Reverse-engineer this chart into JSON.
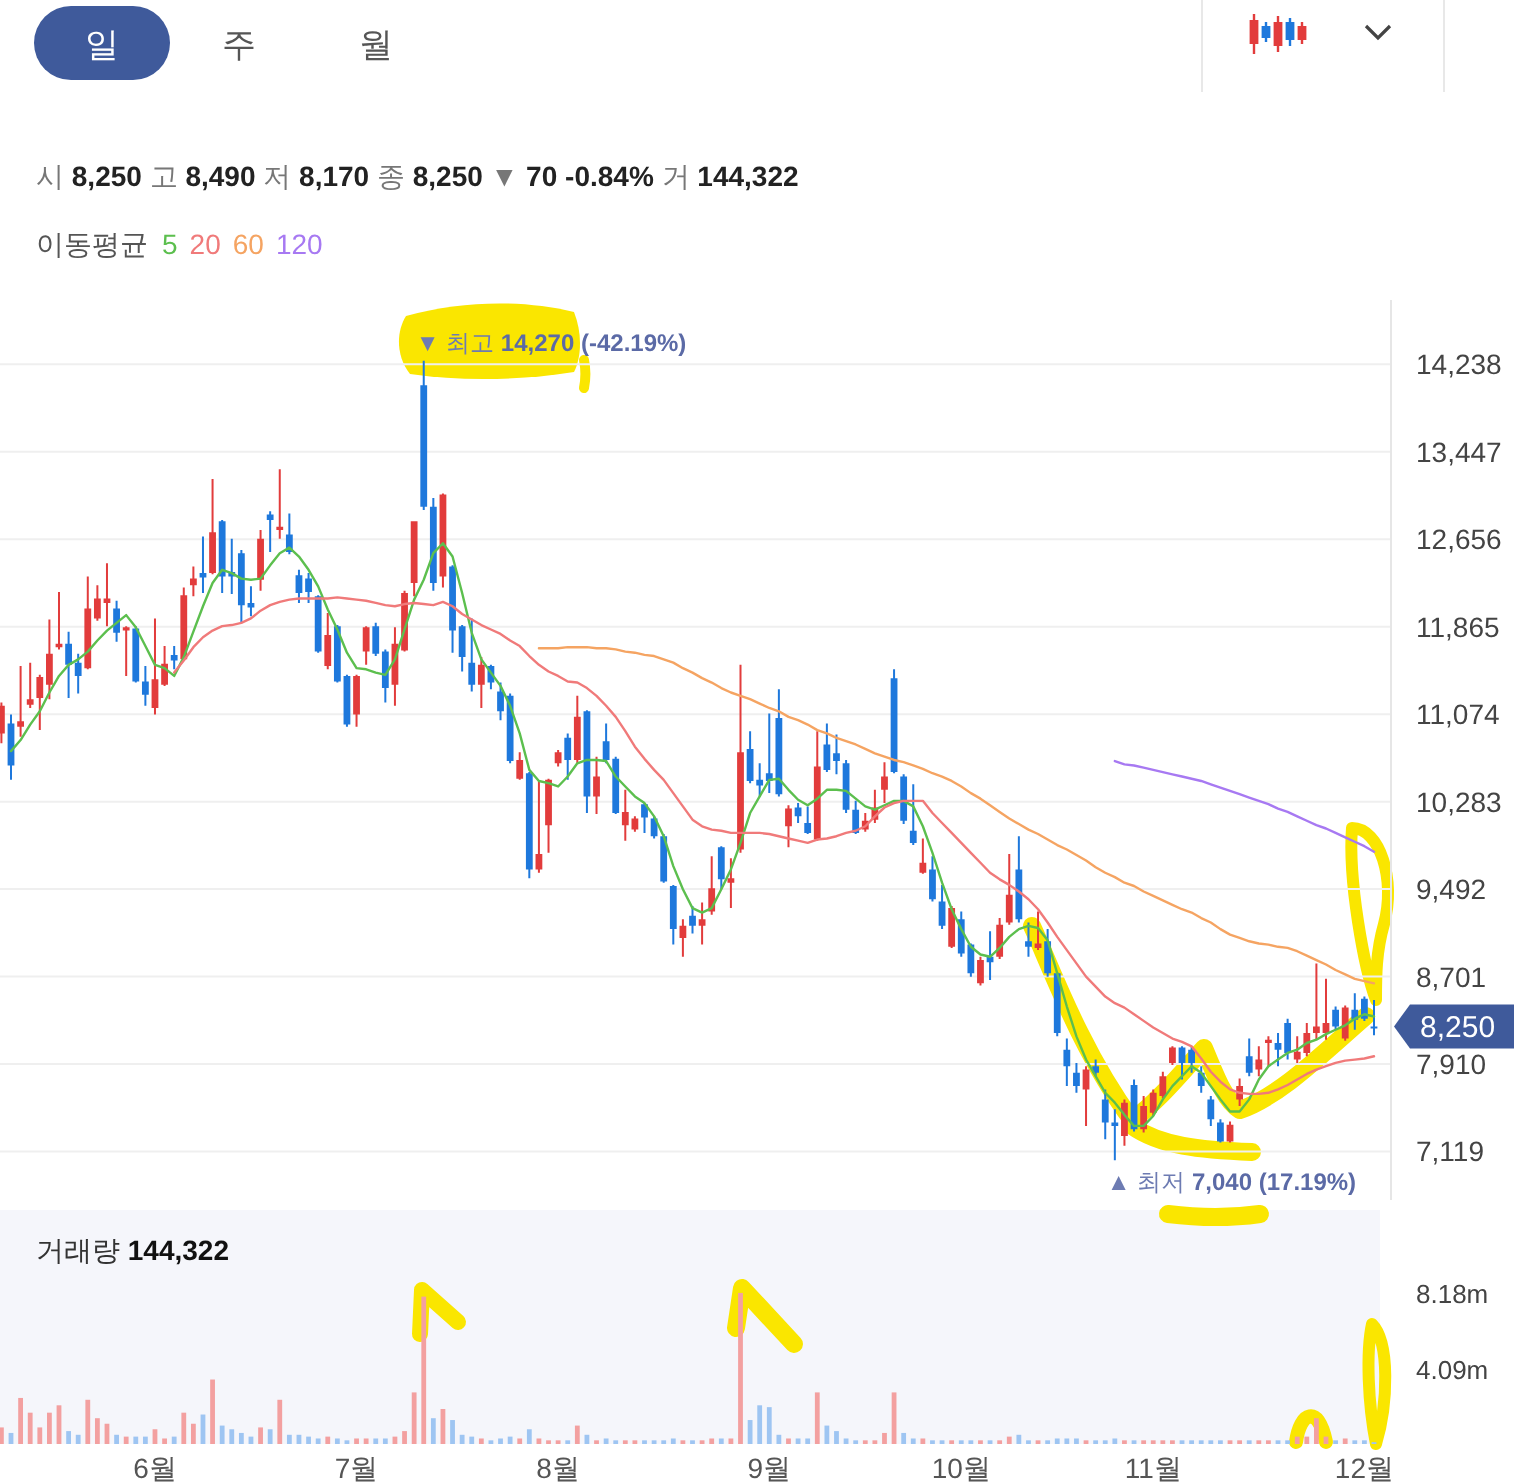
{
  "chart_data": [
    {
      "type": "other",
      "annotations": [
        "일",
        "주",
        "월"
      ]
    },
    {
      "type": "candlestick",
      "title": "시 8,250 고 8,490 저 8,170 종 8,250 ▼ 70 -0.84% 거 144,322",
      "legend": "top left",
      "legend_title": "이동평균",
      "grid": "y",
      "tick_labels": "y",
      "ylim": [
        6680,
        14820
      ],
      "yticks": [
        {
          "value": 7119,
          "label": "7,119"
        },
        {
          "value": 7910,
          "label": "7,910"
        },
        {
          "value": 8701,
          "label": "8,701"
        },
        {
          "value": 9492,
          "label": "9,492"
        },
        {
          "value": 10283,
          "label": "10,283"
        },
        {
          "value": 11074,
          "label": "11,074"
        },
        {
          "value": 11865,
          "label": "11,865"
        },
        {
          "value": 12656,
          "label": "12,656"
        },
        {
          "value": 13447,
          "label": "13,447"
        },
        {
          "value": 14238,
          "label": "14,238"
        }
      ],
      "categories": [
        null,
        null,
        null,
        null,
        null,
        null,
        null,
        null,
        null,
        null,
        null,
        null,
        null,
        null,
        null,
        null,
        null,
        null,
        null,
        null,
        null,
        null,
        null,
        null,
        null,
        null,
        null,
        null,
        null,
        null,
        null,
        null,
        null,
        null,
        null,
        null,
        null,
        null,
        null,
        null,
        null,
        null,
        null,
        null,
        null,
        null,
        null,
        null,
        null,
        null,
        null,
        null,
        null,
        null,
        null,
        null,
        null,
        null,
        null,
        null,
        null,
        null,
        null,
        null,
        null,
        null,
        null,
        null,
        null,
        null,
        null,
        null,
        null,
        null,
        null,
        null,
        null,
        null,
        null,
        null,
        null,
        null,
        null,
        null,
        null,
        null,
        null,
        null,
        null,
        null,
        null,
        null,
        null,
        null,
        null,
        null,
        null,
        null,
        null,
        null,
        null,
        null,
        null,
        null,
        null,
        null,
        null,
        null,
        null,
        null,
        null,
        null,
        null,
        null,
        null,
        null,
        null,
        null,
        null,
        null,
        null,
        null,
        null,
        null,
        null,
        null,
        null,
        null,
        null,
        null,
        null,
        null,
        null,
        null,
        null,
        null,
        null,
        null,
        null,
        null,
        null,
        null,
        null,
        null
      ],
      "ohlc": [
        [
          10900,
          11180,
          10810,
          11150
        ],
        [
          10990,
          11070,
          10480,
          10610
        ],
        [
          10960,
          11510,
          10870,
          11010
        ],
        [
          11160,
          11540,
          11130,
          11210
        ],
        [
          11220,
          11430,
          10930,
          11410
        ],
        [
          11340,
          11930,
          11210,
          11620
        ],
        [
          11680,
          12180,
          11660,
          11710
        ],
        [
          11710,
          11820,
          11220,
          11520
        ],
        [
          11540,
          11620,
          11260,
          11420
        ],
        [
          11490,
          12320,
          11480,
          12030
        ],
        [
          11940,
          12240,
          11920,
          12120
        ],
        [
          12080,
          12440,
          11870,
          12120
        ],
        [
          12030,
          12100,
          11730,
          11810
        ],
        [
          11830,
          11870,
          11420,
          11860
        ],
        [
          11850,
          11870,
          11360,
          11370
        ],
        [
          11370,
          11510,
          11150,
          11250
        ],
        [
          11130,
          11940,
          11070,
          11390
        ],
        [
          11340,
          11690,
          11330,
          11530
        ],
        [
          11610,
          11690,
          11480,
          11560
        ],
        [
          11570,
          12220,
          11560,
          12150
        ],
        [
          12240,
          12410,
          12140,
          12300
        ],
        [
          12350,
          12680,
          12170,
          12310
        ],
        [
          12350,
          13200,
          12340,
          12720
        ],
        [
          12820,
          12830,
          12170,
          12320
        ],
        [
          12360,
          12660,
          12160,
          12320
        ],
        [
          12530,
          12560,
          11900,
          12060
        ],
        [
          12080,
          12230,
          11960,
          12040
        ],
        [
          12290,
          12740,
          12190,
          12660
        ],
        [
          12880,
          12910,
          12540,
          12830
        ],
        [
          12740,
          13290,
          12660,
          12770
        ],
        [
          12700,
          12890,
          12520,
          12540
        ],
        [
          12330,
          12380,
          12080,
          12170
        ],
        [
          12300,
          12350,
          12080,
          12180
        ],
        [
          12140,
          12150,
          11630,
          11640
        ],
        [
          11510,
          11990,
          11480,
          11790
        ],
        [
          11870,
          11880,
          11360,
          11370
        ],
        [
          11420,
          11430,
          10960,
          10980
        ],
        [
          11070,
          11430,
          10960,
          11420
        ],
        [
          11640,
          11870,
          11520,
          11860
        ],
        [
          11870,
          11900,
          11600,
          11620
        ],
        [
          11640,
          11660,
          11180,
          11310
        ],
        [
          11340,
          11860,
          11150,
          11710
        ],
        [
          11650,
          12190,
          11640,
          12170
        ],
        [
          12260,
          12820,
          12140,
          12820
        ],
        [
          14050,
          14270,
          12920,
          12950
        ],
        [
          12950,
          13030,
          12190,
          12260
        ],
        [
          12320,
          13070,
          12220,
          13060
        ],
        [
          12410,
          12420,
          11630,
          11830
        ],
        [
          11870,
          11880,
          11460,
          11590
        ],
        [
          11540,
          11940,
          11280,
          11340
        ],
        [
          11340,
          11590,
          11130,
          11520
        ],
        [
          11510,
          11520,
          11300,
          11360
        ],
        [
          11280,
          11360,
          11020,
          11100
        ],
        [
          11240,
          11260,
          10630,
          10650
        ],
        [
          10490,
          10730,
          10480,
          10660
        ],
        [
          10540,
          10550,
          9590,
          9670
        ],
        [
          9670,
          10470,
          9640,
          9810
        ],
        [
          10070,
          10490,
          9820,
          10480
        ],
        [
          10630,
          10750,
          10600,
          10730
        ],
        [
          10860,
          10900,
          10480,
          10660
        ],
        [
          10660,
          11240,
          10630,
          11050
        ],
        [
          11100,
          11110,
          10180,
          10330
        ],
        [
          10330,
          10690,
          10170,
          10510
        ],
        [
          10830,
          10990,
          10630,
          10660
        ],
        [
          10670,
          10690,
          10170,
          10180
        ],
        [
          10070,
          10390,
          9930,
          10190
        ],
        [
          10030,
          10150,
          10010,
          10130
        ],
        [
          10260,
          10270,
          10000,
          10140
        ],
        [
          10130,
          10150,
          9950,
          9970
        ],
        [
          9970,
          9990,
          9550,
          9560
        ],
        [
          9520,
          9530,
          8990,
          9130
        ],
        [
          9050,
          9220,
          8880,
          9160
        ],
        [
          9250,
          9340,
          9090,
          9160
        ],
        [
          9160,
          9370,
          8990,
          9220
        ],
        [
          9290,
          9790,
          9260,
          9500
        ],
        [
          9870,
          9880,
          9490,
          9580
        ],
        [
          9550,
          9770,
          9320,
          9590
        ],
        [
          9850,
          11520,
          9820,
          10730
        ],
        [
          10760,
          10920,
          10450,
          10470
        ],
        [
          10480,
          10630,
          10330,
          10430
        ],
        [
          10540,
          11080,
          10360,
          10470
        ],
        [
          11040,
          11300,
          10330,
          10350
        ],
        [
          10060,
          10250,
          9870,
          10220
        ],
        [
          10230,
          10270,
          10090,
          10150
        ],
        [
          10090,
          10240,
          9990,
          10000
        ],
        [
          9940,
          10920,
          9930,
          10600
        ],
        [
          10800,
          10990,
          10550,
          10570
        ],
        [
          10720,
          10890,
          10530,
          10650
        ],
        [
          10630,
          10660,
          10180,
          10210
        ],
        [
          10210,
          10290,
          9990,
          10000
        ],
        [
          10030,
          10180,
          10010,
          10110
        ],
        [
          10120,
          10390,
          10090,
          10230
        ],
        [
          10390,
          10640,
          10270,
          10510
        ],
        [
          11400,
          11480,
          10540,
          10550
        ],
        [
          10510,
          10530,
          10080,
          10110
        ],
        [
          10020,
          10440,
          9890,
          9910
        ],
        [
          9640,
          9950,
          9630,
          9730
        ],
        [
          9670,
          9790,
          9380,
          9400
        ],
        [
          9380,
          9530,
          9130,
          9160
        ],
        [
          8970,
          9340,
          8960,
          9320
        ],
        [
          9220,
          9290,
          8880,
          8910
        ],
        [
          8990,
          9000,
          8700,
          8730
        ],
        [
          8640,
          8880,
          8620,
          8850
        ],
        [
          8880,
          9110,
          8670,
          8830
        ],
        [
          8880,
          9230,
          8860,
          9170
        ],
        [
          9190,
          9810,
          9170,
          9440
        ],
        [
          9670,
          9970,
          9190,
          9220
        ],
        [
          9020,
          9190,
          8880,
          8970
        ],
        [
          8960,
          9290,
          8940,
          9000
        ],
        [
          9020,
          9130,
          8700,
          8730
        ],
        [
          8730,
          8740,
          8160,
          8190
        ],
        [
          8040,
          8140,
          7710,
          7890
        ],
        [
          7830,
          7920,
          7650,
          7710
        ],
        [
          7680,
          7890,
          7350,
          7860
        ],
        [
          7890,
          7950,
          7800,
          7830
        ],
        [
          7590,
          7680,
          7230,
          7380
        ],
        [
          7380,
          7500,
          7040,
          7350
        ],
        [
          7260,
          7590,
          7170,
          7560
        ],
        [
          7720,
          7770,
          7300,
          7320
        ],
        [
          7320,
          7620,
          7290,
          7530
        ],
        [
          7470,
          7680,
          7440,
          7650
        ],
        [
          7620,
          7840,
          7600,
          7800
        ],
        [
          7920,
          8070,
          7900,
          8060
        ],
        [
          8060,
          8070,
          7770,
          7920
        ],
        [
          8040,
          8070,
          7830,
          7920
        ],
        [
          7830,
          7890,
          7650,
          7710
        ],
        [
          7590,
          7620,
          7350,
          7410
        ],
        [
          7380,
          7410,
          7200,
          7210
        ],
        [
          7210,
          7390,
          7200,
          7360
        ],
        [
          7590,
          7780,
          7530,
          7710
        ],
        [
          7980,
          8140,
          7800,
          7830
        ],
        [
          7860,
          8070,
          7800,
          7950
        ],
        [
          8100,
          8160,
          7890,
          8130
        ],
        [
          8100,
          8190,
          7890,
          8040
        ],
        [
          8280,
          8320,
          7950,
          8010
        ],
        [
          7950,
          8160,
          7920,
          8020
        ],
        [
          8010,
          8280,
          7980,
          8190
        ],
        [
          8190,
          8820,
          8130,
          8250
        ],
        [
          8190,
          8680,
          8130,
          8280
        ],
        [
          8400,
          8430,
          8220,
          8250
        ],
        [
          8140,
          8440,
          8120,
          8420
        ],
        [
          8400,
          8550,
          8220,
          8310
        ],
        [
          8500,
          8520,
          8300,
          8320
        ],
        [
          8250,
          8490,
          8170,
          8250
        ]
      ],
      "colors": [
        "#e23c3c",
        "#1e78dc",
        "#e23c3c",
        "#e23c3c",
        "#e23c3c",
        "#e23c3c",
        "#e23c3c",
        "#1e78dc",
        "#1e78dc",
        "#e23c3c",
        "#e23c3c",
        "#e23c3c",
        "#1e78dc",
        "#e23c3c",
        "#1e78dc",
        "#1e78dc",
        "#e23c3c",
        "#e23c3c",
        "#1e78dc",
        "#e23c3c",
        "#e23c3c",
        "#1e78dc",
        "#e23c3c",
        "#1e78dc",
        "#1e78dc",
        "#1e78dc",
        "#1e78dc",
        "#e23c3c",
        "#1e78dc",
        "#e23c3c",
        "#1e78dc",
        "#1e78dc",
        "#1e78dc",
        "#1e78dc",
        "#e23c3c",
        "#1e78dc",
        "#1e78dc",
        "#e23c3c",
        "#e23c3c",
        "#1e78dc",
        "#1e78dc",
        "#e23c3c",
        "#e23c3c",
        "#e23c3c",
        "#1e78dc",
        "#1e78dc",
        "#e23c3c",
        "#1e78dc",
        "#1e78dc",
        "#1e78dc",
        "#e23c3c",
        "#1e78dc",
        "#1e78dc",
        "#1e78dc",
        "#e23c3c",
        "#1e78dc",
        "#e23c3c",
        "#e23c3c",
        "#e23c3c",
        "#1e78dc",
        "#e23c3c",
        "#1e78dc",
        "#e23c3c",
        "#1e78dc",
        "#1e78dc",
        "#e23c3c",
        "#e23c3c",
        "#1e78dc",
        "#1e78dc",
        "#1e78dc",
        "#1e78dc",
        "#e23c3c",
        "#1e78dc",
        "#e23c3c",
        "#e23c3c",
        "#1e78dc",
        "#e23c3c",
        "#e23c3c",
        "#1e78dc",
        "#1e78dc",
        "#1e78dc",
        "#1e78dc",
        "#e23c3c",
        "#1e78dc",
        "#1e78dc",
        "#e23c3c",
        "#1e78dc",
        "#1e78dc",
        "#1e78dc",
        "#1e78dc",
        "#e23c3c",
        "#e23c3c",
        "#e23c3c",
        "#1e78dc",
        "#1e78dc",
        "#1e78dc",
        "#e23c3c",
        "#1e78dc",
        "#1e78dc",
        "#e23c3c",
        "#1e78dc",
        "#1e78dc",
        "#e23c3c",
        "#1e78dc",
        "#e23c3c",
        "#e23c3c",
        "#1e78dc",
        "#1e78dc",
        "#e23c3c",
        "#1e78dc",
        "#1e78dc",
        "#1e78dc",
        "#1e78dc",
        "#e23c3c",
        "#1e78dc",
        "#1e78dc",
        "#1e78dc",
        "#e23c3c",
        "#1e78dc",
        "#e23c3c",
        "#e23c3c",
        "#e23c3c",
        "#e23c3c",
        "#1e78dc",
        "#1e78dc",
        "#1e78dc",
        "#1e78dc",
        "#1e78dc",
        "#e23c3c",
        "#e23c3c",
        "#1e78dc",
        "#e23c3c",
        "#e23c3c",
        "#1e78dc",
        "#1e78dc",
        "#e23c3c",
        "#e23c3c",
        "#e23c3c",
        "#e23c3c",
        "#1e78dc",
        "#e23c3c",
        "#1e78dc",
        "#1e78dc",
        "#1e78dc"
      ],
      "series": [
        {
          "name": "5",
          "type": "line",
          "color": "#5cbf4e",
          "values": [
            null,
            10740,
            10840,
            10980,
            11100,
            11270,
            11420,
            11520,
            11570,
            11640,
            11740,
            11830,
            11900,
            11970,
            11860,
            11690,
            11520,
            11490,
            11420,
            11590,
            11820,
            12050,
            12260,
            12380,
            12350,
            12300,
            12290,
            12300,
            12420,
            12530,
            12580,
            12500,
            12380,
            12230,
            12020,
            11840,
            11630,
            11490,
            11480,
            11450,
            11430,
            11570,
            11840,
            12110,
            12290,
            12530,
            12620,
            12500,
            12170,
            11810,
            11570,
            11450,
            11330,
            11150,
            10900,
            10570,
            10470,
            10450,
            10420,
            10510,
            10630,
            10660,
            10660,
            10650,
            10510,
            10420,
            10330,
            10270,
            10150,
            9970,
            9700,
            9490,
            9320,
            9280,
            9320,
            9490,
            9670,
            9910,
            10180,
            10330,
            10480,
            10490,
            10390,
            10300,
            10250,
            10310,
            10390,
            10390,
            10380,
            10310,
            10240,
            10210,
            10250,
            10290,
            10290,
            10240,
            10060,
            9820,
            9550,
            9310,
            9130,
            8970,
            8900,
            8880,
            8960,
            9060,
            9130,
            9160,
            9140,
            9030,
            8730,
            8430,
            8160,
            7950,
            7800,
            7650,
            7560,
            7450,
            7350,
            7350,
            7440,
            7590,
            7710,
            7800,
            7890,
            7830,
            7710,
            7590,
            7480,
            7480,
            7590,
            7770,
            7890,
            7950,
            8010,
            8040,
            8100,
            8130,
            8180,
            8220,
            8260,
            8320,
            8360,
            8340
          ]
        },
        {
          "name": "20",
          "type": "line",
          "color": "#f07a7a",
          "values": [
            null,
            null,
            null,
            null,
            null,
            null,
            null,
            null,
            null,
            null,
            null,
            null,
            null,
            null,
            null,
            null,
            null,
            null,
            11450,
            11560,
            11680,
            11770,
            11830,
            11870,
            11880,
            11900,
            11940,
            12010,
            12060,
            12090,
            12110,
            12120,
            12120,
            12120,
            12120,
            12130,
            12120,
            12110,
            12100,
            12080,
            12060,
            12050,
            12070,
            12080,
            12070,
            12060,
            12090,
            12050,
            11980,
            11930,
            11880,
            11840,
            11800,
            11740,
            11690,
            11600,
            11520,
            11460,
            11420,
            11370,
            11360,
            11310,
            11240,
            11150,
            11050,
            10920,
            10780,
            10670,
            10570,
            10480,
            10360,
            10240,
            10120,
            10060,
            10030,
            10020,
            10000,
            10000,
            10000,
            10000,
            9990,
            9970,
            9950,
            9930,
            9910,
            9940,
            9950,
            9970,
            10000,
            10020,
            10060,
            10150,
            10230,
            10270,
            10290,
            10290,
            10290,
            10180,
            10090,
            10000,
            9910,
            9820,
            9730,
            9640,
            9580,
            9530,
            9470,
            9400,
            9310,
            9190,
            9060,
            8940,
            8820,
            8700,
            8610,
            8520,
            8460,
            8420,
            8360,
            8300,
            8240,
            8190,
            8140,
            8110,
            8070,
            7960,
            7840,
            7750,
            7680,
            7650,
            7640,
            7640,
            7650,
            7680,
            7720,
            7770,
            7820,
            7860,
            7890,
            7920,
            7940,
            7950,
            7960,
            7980
          ]
        },
        {
          "name": "60",
          "type": "line",
          "color": "#f5a462",
          "values": [
            null,
            null,
            null,
            null,
            null,
            null,
            null,
            null,
            null,
            null,
            null,
            null,
            null,
            null,
            null,
            null,
            null,
            null,
            null,
            null,
            null,
            null,
            null,
            null,
            null,
            null,
            null,
            null,
            null,
            null,
            null,
            null,
            null,
            null,
            null,
            null,
            null,
            null,
            null,
            null,
            null,
            null,
            null,
            null,
            null,
            null,
            null,
            null,
            null,
            null,
            null,
            null,
            null,
            null,
            null,
            null,
            11670,
            11670,
            11670,
            11680,
            11680,
            11680,
            11670,
            11670,
            11660,
            11640,
            11630,
            11610,
            11600,
            11570,
            11540,
            11490,
            11450,
            11400,
            11360,
            11310,
            11270,
            11240,
            11210,
            11170,
            11130,
            11100,
            11050,
            11020,
            10980,
            10930,
            10900,
            10860,
            10830,
            10800,
            10760,
            10720,
            10690,
            10660,
            10640,
            10610,
            10580,
            10540,
            10510,
            10470,
            10420,
            10360,
            10310,
            10250,
            10190,
            10130,
            10080,
            10030,
            9990,
            9940,
            9890,
            9850,
            9800,
            9750,
            9690,
            9640,
            9600,
            9550,
            9520,
            9470,
            9430,
            9390,
            9350,
            9310,
            9280,
            9230,
            9190,
            9130,
            9080,
            9050,
            9020,
            9000,
            8990,
            8970,
            8960,
            8930,
            8890,
            8850,
            8810,
            8760,
            8720,
            8680,
            8660,
            8640
          ]
        },
        {
          "name": "120",
          "type": "line",
          "color": "#a779f2",
          "values": [
            null,
            null,
            null,
            null,
            null,
            null,
            null,
            null,
            null,
            null,
            null,
            null,
            null,
            null,
            null,
            null,
            null,
            null,
            null,
            null,
            null,
            null,
            null,
            null,
            null,
            null,
            null,
            null,
            null,
            null,
            null,
            null,
            null,
            null,
            null,
            null,
            null,
            null,
            null,
            null,
            null,
            null,
            null,
            null,
            null,
            null,
            null,
            null,
            null,
            null,
            null,
            null,
            null,
            null,
            null,
            null,
            null,
            null,
            null,
            null,
            null,
            null,
            null,
            null,
            null,
            null,
            null,
            null,
            null,
            null,
            null,
            null,
            null,
            null,
            null,
            null,
            null,
            null,
            null,
            null,
            null,
            null,
            null,
            null,
            null,
            null,
            null,
            null,
            null,
            null,
            null,
            null,
            null,
            null,
            null,
            null,
            null,
            null,
            null,
            null,
            null,
            null,
            null,
            null,
            null,
            null,
            null,
            null,
            null,
            null,
            null,
            null,
            null,
            null,
            null,
            null,
            10650,
            10620,
            10610,
            10590,
            10570,
            10550,
            10530,
            10510,
            10490,
            10470,
            10440,
            10410,
            10380,
            10350,
            10320,
            10290,
            10260,
            10220,
            10190,
            10150,
            10110,
            10070,
            10040,
            10000,
            9960,
            9920,
            9880,
            9830
          ]
        }
      ],
      "annotations": [
        "▼ 최고 14,270 (-42.19%)",
        "▲ 최저 7,040 (17.19%)",
        "8,250"
      ]
    },
    {
      "type": "bar",
      "title": "거래량 144,322",
      "ylim": [
        0,
        12.7
      ],
      "yticks": [
        {
          "value": 4.09,
          "label": "4.09m"
        },
        {
          "value": 8.18,
          "label": "8.18m"
        }
      ],
      "categories": [
        null,
        null,
        null,
        null,
        null,
        null,
        null,
        null,
        null,
        null,
        null,
        null,
        null,
        null,
        null,
        null,
        "6월",
        null,
        null,
        null,
        null,
        null,
        null,
        null,
        null,
        null,
        null,
        null,
        null,
        null,
        null,
        null,
        null,
        null,
        null,
        null,
        null,
        "7월",
        null,
        null,
        null,
        null,
        null,
        null,
        null,
        null,
        null,
        null,
        null,
        null,
        null,
        null,
        null,
        null,
        null,
        null,
        null,
        null,
        "8월",
        null,
        null,
        null,
        null,
        null,
        null,
        null,
        null,
        null,
        null,
        null,
        null,
        null,
        null,
        null,
        null,
        null,
        null,
        null,
        null,
        null,
        "9월",
        null,
        null,
        null,
        null,
        null,
        null,
        null,
        null,
        null,
        null,
        null,
        null,
        null,
        null,
        null,
        null,
        null,
        null,
        null,
        "10월",
        null,
        null,
        null,
        null,
        null,
        null,
        null,
        null,
        null,
        null,
        null,
        null,
        null,
        null,
        null,
        null,
        null,
        null,
        null,
        "11월",
        null,
        null,
        null,
        null,
        null,
        null,
        null,
        null,
        null,
        null,
        null,
        null,
        null,
        null,
        null,
        null,
        null,
        null,
        null,
        null,
        null,
        "12월",
        null
      ],
      "values": [
        0.9,
        0.6,
        2.5,
        1.7,
        0.9,
        1.7,
        2.1,
        0.7,
        0.5,
        2.4,
        1.4,
        1.1,
        0.5,
        0.4,
        0.4,
        0.4,
        0.8,
        0.3,
        0.4,
        1.7,
        1.1,
        1.6,
        3.5,
        1.0,
        0.8,
        0.6,
        0.4,
        0.9,
        0.8,
        2.4,
        0.5,
        0.5,
        0.4,
        0.3,
        0.4,
        0.3,
        0.2,
        0.3,
        0.3,
        0.3,
        0.3,
        0.4,
        0.7,
        2.8,
        8.0,
        1.4,
        1.9,
        1.3,
        0.5,
        0.4,
        0.3,
        0.2,
        0.3,
        0.4,
        0.3,
        0.8,
        0.3,
        0.2,
        0.2,
        0.2,
        1.0,
        0.5,
        0.2,
        0.3,
        0.2,
        0.2,
        0.2,
        0.2,
        0.2,
        0.2,
        0.3,
        0.2,
        0.2,
        0.2,
        0.3,
        0.3,
        0.3,
        8.2,
        1.3,
        2.1,
        2.0,
        0.5,
        0.3,
        0.3,
        0.3,
        2.8,
        1.0,
        0.7,
        0.3,
        0.2,
        0.2,
        0.2,
        0.6,
        2.8,
        0.6,
        0.3,
        0.3,
        0.2,
        0.2,
        0.2,
        0.2,
        0.2,
        0.2,
        0.2,
        0.2,
        0.4,
        0.5,
        0.2,
        0.2,
        0.2,
        0.3,
        0.3,
        0.3,
        0.2,
        0.2,
        0.2,
        0.3,
        0.2,
        0.2,
        0.2,
        0.2,
        0.2,
        0.2,
        0.2,
        0.2,
        0.2,
        0.2,
        0.2,
        0.2,
        0.2,
        0.2,
        0.2,
        0.2,
        0.2,
        0.2,
        0.4,
        0.4,
        1.4,
        0.4,
        0.2,
        0.3,
        0.2,
        0.2,
        0.1
      ],
      "colors": [
        "#f3a0a0",
        "#9ec5f2",
        "#f3a0a0",
        "#f3a0a0",
        "#f3a0a0",
        "#f3a0a0",
        "#f3a0a0",
        "#9ec5f2",
        "#9ec5f2",
        "#f3a0a0",
        "#f3a0a0",
        "#f3a0a0",
        "#9ec5f2",
        "#f3a0a0",
        "#9ec5f2",
        "#9ec5f2",
        "#f3a0a0",
        "#f3a0a0",
        "#9ec5f2",
        "#f3a0a0",
        "#f3a0a0",
        "#9ec5f2",
        "#f3a0a0",
        "#9ec5f2",
        "#9ec5f2",
        "#9ec5f2",
        "#9ec5f2",
        "#f3a0a0",
        "#9ec5f2",
        "#f3a0a0",
        "#9ec5f2",
        "#9ec5f2",
        "#9ec5f2",
        "#9ec5f2",
        "#f3a0a0",
        "#9ec5f2",
        "#9ec5f2",
        "#f3a0a0",
        "#f3a0a0",
        "#9ec5f2",
        "#9ec5f2",
        "#f3a0a0",
        "#f3a0a0",
        "#f3a0a0",
        "#f3a0a0",
        "#9ec5f2",
        "#f3a0a0",
        "#9ec5f2",
        "#9ec5f2",
        "#9ec5f2",
        "#f3a0a0",
        "#9ec5f2",
        "#9ec5f2",
        "#9ec5f2",
        "#f3a0a0",
        "#9ec5f2",
        "#f3a0a0",
        "#f3a0a0",
        "#f3a0a0",
        "#9ec5f2",
        "#f3a0a0",
        "#9ec5f2",
        "#f3a0a0",
        "#9ec5f2",
        "#9ec5f2",
        "#f3a0a0",
        "#f3a0a0",
        "#9ec5f2",
        "#9ec5f2",
        "#9ec5f2",
        "#9ec5f2",
        "#f3a0a0",
        "#9ec5f2",
        "#f3a0a0",
        "#f3a0a0",
        "#9ec5f2",
        "#f3a0a0",
        "#f3a0a0",
        "#9ec5f2",
        "#9ec5f2",
        "#9ec5f2",
        "#9ec5f2",
        "#f3a0a0",
        "#9ec5f2",
        "#9ec5f2",
        "#f3a0a0",
        "#9ec5f2",
        "#9ec5f2",
        "#9ec5f2",
        "#9ec5f2",
        "#f3a0a0",
        "#f3a0a0",
        "#f3a0a0",
        "#f3a0a0",
        "#9ec5f2",
        "#9ec5f2",
        "#f3a0a0",
        "#9ec5f2",
        "#9ec5f2",
        "#f3a0a0",
        "#9ec5f2",
        "#9ec5f2",
        "#f3a0a0",
        "#9ec5f2",
        "#f3a0a0",
        "#f3a0a0",
        "#9ec5f2",
        "#9ec5f2",
        "#f3a0a0",
        "#9ec5f2",
        "#9ec5f2",
        "#9ec5f2",
        "#9ec5f2",
        "#f3a0a0",
        "#9ec5f2",
        "#9ec5f2",
        "#9ec5f2",
        "#f3a0a0",
        "#9ec5f2",
        "#f3a0a0",
        "#f3a0a0",
        "#f3a0a0",
        "#f3a0a0",
        "#9ec5f2",
        "#9ec5f2",
        "#9ec5f2",
        "#9ec5f2",
        "#9ec5f2",
        "#f3a0a0",
        "#f3a0a0",
        "#9ec5f2",
        "#f3a0a0",
        "#f3a0a0",
        "#9ec5f2",
        "#9ec5f2",
        "#f3a0a0",
        "#f3a0a0",
        "#f3a0a0",
        "#f3a0a0",
        "#9ec5f2",
        "#f3a0a0",
        "#9ec5f2",
        "#9ec5f2",
        "#9ec5f2"
      ]
    }
  ]
}
